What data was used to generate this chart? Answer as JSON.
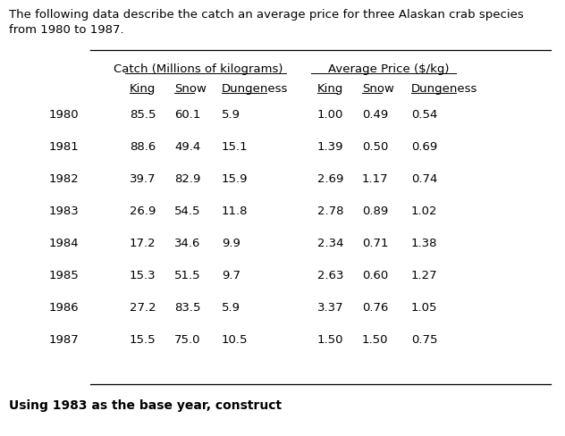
{
  "intro_line1": "The following data describe the catch an average price for three Alaskan crab species",
  "intro_line2": "from 1980 to 1987.",
  "footer_text": "Using 1983 as the base year, construct",
  "col_group1_header": "Catch (Millions of kilograms)",
  "col_group2_header": "Average Price ($/kg)",
  "sub_headers": [
    "King",
    "Snow",
    "Dungeness",
    "King",
    "Snow",
    "Dungeness"
  ],
  "years": [
    1980,
    1981,
    1982,
    1983,
    1984,
    1985,
    1986,
    1987
  ],
  "catch_king": [
    85.5,
    88.6,
    39.7,
    26.9,
    17.2,
    15.3,
    27.2,
    15.5
  ],
  "catch_snow": [
    60.1,
    49.4,
    82.9,
    54.5,
    34.6,
    51.5,
    83.5,
    75.0
  ],
  "catch_dungeness": [
    5.9,
    15.1,
    15.9,
    11.8,
    9.9,
    9.7,
    5.9,
    10.5
  ],
  "price_king": [
    1.0,
    1.39,
    2.69,
    2.78,
    2.34,
    2.63,
    3.37,
    1.5
  ],
  "price_snow": [
    0.49,
    0.5,
    1.17,
    0.89,
    0.71,
    0.6,
    0.76,
    1.5
  ],
  "price_dungeness": [
    0.54,
    0.69,
    0.74,
    1.02,
    1.38,
    1.27,
    1.05,
    0.75
  ],
  "bg_color": "#ffffff",
  "text_color": "#000000",
  "font_size": 9.5,
  "font_size_footer": 10.0
}
